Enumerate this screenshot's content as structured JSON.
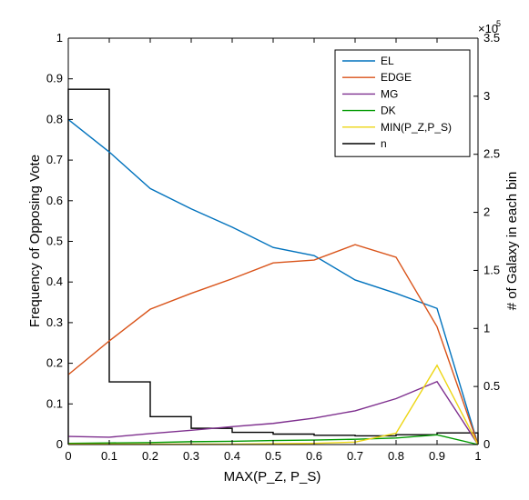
{
  "chart_data": {
    "type": "line",
    "xlabel": "MAX(P_Z, P_S)",
    "ylabel_left": "Frequency of Opposing Vote",
    "ylabel_right": "# of Galaxy in each bin",
    "right_axis_exponent_base": "×10",
    "right_axis_exponent_power": "5",
    "xlim": [
      0,
      1
    ],
    "ylim_left": [
      0,
      1
    ],
    "ylim_right": [
      0,
      3.5
    ],
    "x_ticks": [
      "0",
      "0.1",
      "0.2",
      "0.3",
      "0.4",
      "0.5",
      "0.6",
      "0.7",
      "0.8",
      "0.9",
      "1"
    ],
    "y_left_ticks": [
      "0",
      "0.1",
      "0.2",
      "0.3",
      "0.4",
      "0.5",
      "0.6",
      "0.7",
      "0.8",
      "0.9",
      "1"
    ],
    "y_right_ticks": [
      "0",
      "0.5",
      "1",
      "1.5",
      "2",
      "2.5",
      "3",
      "3.5"
    ],
    "legend_position": "top-right",
    "x": [
      0,
      0.1,
      0.2,
      0.3,
      0.4,
      0.5,
      0.6,
      0.7,
      0.8,
      0.9,
      1.0
    ],
    "series": [
      {
        "name": "EL",
        "color": "#0072BD",
        "axis": "left",
        "values": [
          0.8,
          0.72,
          0.63,
          0.58,
          0.535,
          0.485,
          0.465,
          0.405,
          0.372,
          0.335,
          0.0
        ]
      },
      {
        "name": "EDGE",
        "color": "#D95319",
        "axis": "left",
        "values": [
          0.172,
          0.255,
          0.333,
          0.372,
          0.408,
          0.447,
          0.454,
          0.492,
          0.461,
          0.29,
          0.0
        ]
      },
      {
        "name": "MG",
        "color": "#7E2F8E",
        "axis": "left",
        "values": [
          0.02,
          0.018,
          0.027,
          0.035,
          0.044,
          0.052,
          0.065,
          0.083,
          0.113,
          0.155,
          0.0
        ]
      },
      {
        "name": "DK",
        "color": "#009900",
        "axis": "left",
        "values": [
          0.003,
          0.004,
          0.005,
          0.007,
          0.008,
          0.01,
          0.011,
          0.013,
          0.016,
          0.024,
          0.0
        ]
      },
      {
        "name": "MIN(P_Z,P_S)",
        "color": "#EDD614",
        "axis": "left",
        "values": [
          0.001,
          0.001,
          0.001,
          0.001,
          0.001,
          0.002,
          0.003,
          0.006,
          0.028,
          0.195,
          0.0
        ]
      }
    ],
    "histogram": {
      "name": "n",
      "color": "#000000",
      "axis": "right",
      "bin_edges": [
        0,
        0.1,
        0.2,
        0.3,
        0.4,
        0.5,
        0.6,
        0.7,
        0.8,
        0.9,
        1.0
      ],
      "counts": [
        3.06,
        0.54,
        0.24,
        0.14,
        0.105,
        0.09,
        0.08,
        0.075,
        0.085,
        0.1
      ]
    }
  }
}
